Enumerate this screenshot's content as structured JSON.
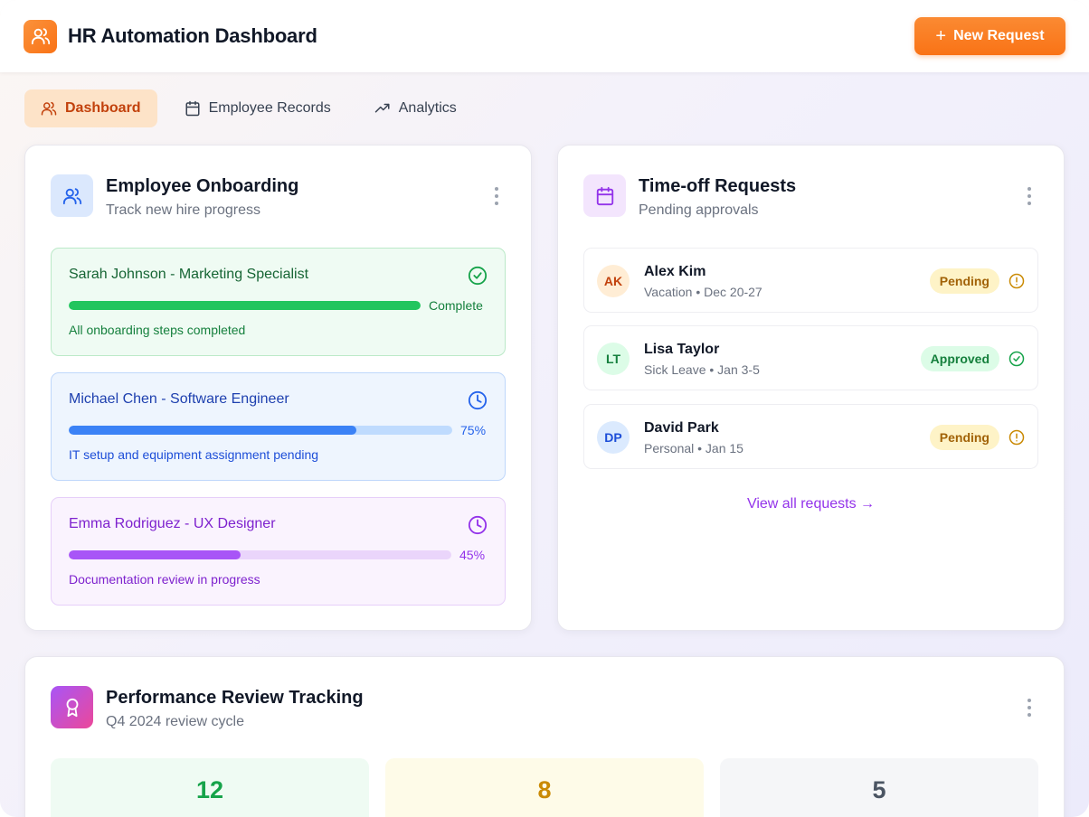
{
  "header": {
    "title": "HR Automation Dashboard",
    "new_request_label": "New Request",
    "logo_icon": "users-icon",
    "accent": "#f97316"
  },
  "tabs": [
    {
      "label": "Dashboard",
      "icon": "users-icon",
      "active": true
    },
    {
      "label": "Employee Records",
      "icon": "calendar-icon",
      "active": false
    },
    {
      "label": "Analytics",
      "icon": "trending-up-icon",
      "active": false
    }
  ],
  "onboarding": {
    "title": "Employee Onboarding",
    "subtitle": "Track new hire progress",
    "items": [
      {
        "name": "Sarah Johnson - Marketing Specialist",
        "progress": 100,
        "progress_label": "Complete",
        "note": "All onboarding steps completed",
        "status_icon": "check-circle-icon",
        "color": "#16a34a"
      },
      {
        "name": "Michael Chen - Software Engineer",
        "progress": 75,
        "progress_label": "75%",
        "note": "IT setup and equipment assignment pending",
        "status_icon": "clock-icon",
        "color": "#2563eb"
      },
      {
        "name": "Emma Rodriguez - UX Designer",
        "progress": 45,
        "progress_label": "45%",
        "note": "Documentation review in progress",
        "status_icon": "clock-icon",
        "color": "#9333ea"
      }
    ]
  },
  "timeoff": {
    "title": "Time-off Requests",
    "subtitle": "Pending approvals",
    "requests": [
      {
        "initials": "AK",
        "name": "Alex Kim",
        "detail": "Vacation • Dec 20-27",
        "status": "Pending",
        "status_icon": "alert-circle-icon"
      },
      {
        "initials": "LT",
        "name": "Lisa Taylor",
        "detail": "Sick Leave • Jan 3-5",
        "status": "Approved",
        "status_icon": "check-circle-icon"
      },
      {
        "initials": "DP",
        "name": "David Park",
        "detail": "Personal • Jan 15",
        "status": "Pending",
        "status_icon": "alert-circle-icon"
      }
    ],
    "view_all": "View all requests →"
  },
  "performance": {
    "title": "Performance Review Tracking",
    "subtitle": "Q4 2024 review cycle",
    "icon": "award-icon",
    "stats": [
      {
        "value": "12",
        "color": "#16a34a"
      },
      {
        "value": "8",
        "color": "#ca8a04"
      },
      {
        "value": "5",
        "color": "#4b5563"
      }
    ]
  }
}
